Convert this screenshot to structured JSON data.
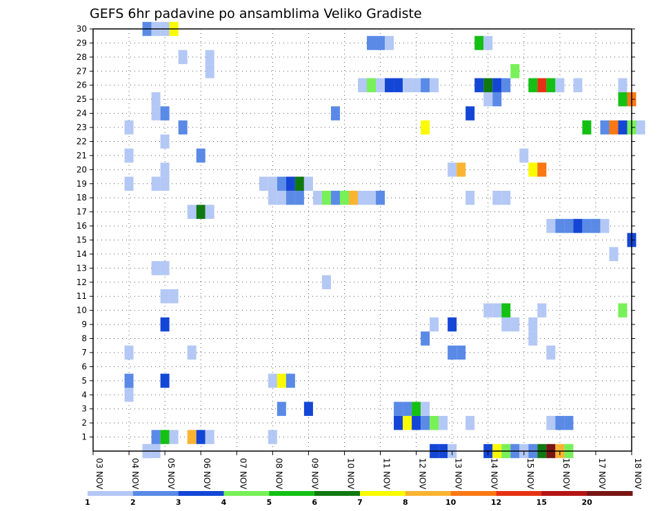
{
  "chart_data": {
    "type": "heatmap",
    "title": "GEFS 6hr padavine po ansamblima Veliko Gradiste",
    "xlabel": "",
    "ylabel": "",
    "x_ticks": [
      "03 NOV",
      "04 NOV",
      "05 NOV",
      "06 NOV",
      "07 NOV",
      "08 NOV",
      "09 NOV",
      "10 NOV",
      "11 NOV",
      "12 NOV",
      "13 NOV",
      "14 NOV",
      "15 NOV",
      "16 NOV",
      "17 NOV",
      "18 NOV"
    ],
    "x_range_days": [
      0,
      15
    ],
    "y_ticks": [
      "1",
      "2",
      "3",
      "4",
      "5",
      "6",
      "7",
      "8",
      "9",
      "10",
      "11",
      "12",
      "13",
      "14",
      "15",
      "16",
      "17",
      "18",
      "19",
      "20",
      "21",
      "22",
      "23",
      "24",
      "25",
      "26",
      "27",
      "28",
      "29",
      "30"
    ],
    "y_range": [
      0,
      30
    ],
    "grid": true,
    "legend_placement": "bottom",
    "legend": {
      "colors": [
        "#b4c8f5",
        "#5a8ae6",
        "#1446d6",
        "#78f058",
        "#14c014",
        "#107810",
        "#fafa00",
        "#fab432",
        "#fa7814",
        "#e63214",
        "#b41414",
        "#781414"
      ],
      "labels": [
        "1",
        "2",
        "3",
        "4",
        "5",
        "6",
        "7",
        "8",
        "10",
        "12",
        "15",
        "20"
      ]
    },
    "cells": [
      {
        "t": 1.5,
        "m": 0,
        "c": 1
      },
      {
        "t": 1.75,
        "m": 0,
        "c": 1
      },
      {
        "t": 1.5,
        "m": 0,
        "c": 1
      },
      {
        "t": 9.5,
        "m": 0,
        "c": 3
      },
      {
        "t": 9.75,
        "m": 0,
        "c": 3
      },
      {
        "t": 10,
        "m": 0,
        "c": 1
      },
      {
        "t": 11,
        "m": 0,
        "c": 3
      },
      {
        "t": 11.25,
        "m": 0,
        "c": 7
      },
      {
        "t": 11.5,
        "m": 0,
        "c": 4
      },
      {
        "t": 11.75,
        "m": 0,
        "c": 2
      },
      {
        "t": 12,
        "m": 0,
        "c": 1
      },
      {
        "t": 12.25,
        "m": 0,
        "c": 2
      },
      {
        "t": 12.5,
        "m": 0,
        "c": 6
      },
      {
        "t": 12.75,
        "m": 0,
        "c": 12
      },
      {
        "t": 13,
        "m": 0,
        "c": 8
      },
      {
        "t": 13.25,
        "m": 0,
        "c": 4
      },
      {
        "t": 1.75,
        "m": 1,
        "c": 2
      },
      {
        "t": 2,
        "m": 1,
        "c": 5
      },
      {
        "t": 2.25,
        "m": 1,
        "c": 1
      },
      {
        "t": 2.75,
        "m": 1,
        "c": 8
      },
      {
        "t": 3,
        "m": 1,
        "c": 3
      },
      {
        "t": 3.25,
        "m": 1,
        "c": 1
      },
      {
        "t": 5,
        "m": 1,
        "c": 1
      },
      {
        "t": 8.5,
        "m": 2,
        "c": 3
      },
      {
        "t": 8.75,
        "m": 2,
        "c": 7
      },
      {
        "t": 9,
        "m": 2,
        "c": 3
      },
      {
        "t": 9.25,
        "m": 2,
        "c": 2
      },
      {
        "t": 9.5,
        "m": 2,
        "c": 4
      },
      {
        "t": 9.75,
        "m": 2,
        "c": 1
      },
      {
        "t": 10.5,
        "m": 2,
        "c": 1
      },
      {
        "t": 12.75,
        "m": 2,
        "c": 1
      },
      {
        "t": 13,
        "m": 2,
        "c": 2
      },
      {
        "t": 13.25,
        "m": 2,
        "c": 2
      },
      {
        "t": 5.25,
        "m": 3,
        "c": 2
      },
      {
        "t": 6,
        "m": 3,
        "c": 3
      },
      {
        "t": 8.5,
        "m": 3,
        "c": 2
      },
      {
        "t": 8.75,
        "m": 3,
        "c": 2
      },
      {
        "t": 9,
        "m": 3,
        "c": 5
      },
      {
        "t": 9.25,
        "m": 3,
        "c": 1
      },
      {
        "t": 1,
        "m": 4,
        "c": 1
      },
      {
        "t": 1,
        "m": 5,
        "c": 2
      },
      {
        "t": 2,
        "m": 5,
        "c": 3
      },
      {
        "t": 5,
        "m": 5,
        "c": 1
      },
      {
        "t": 5.25,
        "m": 5,
        "c": 7
      },
      {
        "t": 5.5,
        "m": 5,
        "c": 2
      },
      {
        "t": 1,
        "m": 7,
        "c": 1
      },
      {
        "t": 2.75,
        "m": 7,
        "c": 1
      },
      {
        "t": 10,
        "m": 7,
        "c": 2
      },
      {
        "t": 10.25,
        "m": 7,
        "c": 2
      },
      {
        "t": 12.75,
        "m": 7,
        "c": 1
      },
      {
        "t": 9.25,
        "m": 8,
        "c": 2
      },
      {
        "t": 12.25,
        "m": 8,
        "c": 1
      },
      {
        "t": 2,
        "m": 9,
        "c": 3
      },
      {
        "t": 9.5,
        "m": 9,
        "c": 1
      },
      {
        "t": 10,
        "m": 9,
        "c": 3
      },
      {
        "t": 11.5,
        "m": 9,
        "c": 1
      },
      {
        "t": 11.75,
        "m": 9,
        "c": 1
      },
      {
        "t": 12.25,
        "m": 9,
        "c": 1
      },
      {
        "t": 11,
        "m": 10,
        "c": 1
      },
      {
        "t": 11.25,
        "m": 10,
        "c": 1
      },
      {
        "t": 11.5,
        "m": 10,
        "c": 5
      },
      {
        "t": 12.5,
        "m": 10,
        "c": 1
      },
      {
        "t": 14.75,
        "m": 10,
        "c": 4
      },
      {
        "t": 2,
        "m": 11,
        "c": 1
      },
      {
        "t": 2.25,
        "m": 11,
        "c": 1
      },
      {
        "t": 6.5,
        "m": 12,
        "c": 1
      },
      {
        "t": 1.75,
        "m": 13,
        "c": 1
      },
      {
        "t": 2,
        "m": 13,
        "c": 1
      },
      {
        "t": 14.5,
        "m": 14,
        "c": 1
      },
      {
        "t": 15,
        "m": 15,
        "c": 3
      },
      {
        "t": 12.75,
        "m": 16,
        "c": 1
      },
      {
        "t": 13,
        "m": 16,
        "c": 2
      },
      {
        "t": 13.25,
        "m": 16,
        "c": 2
      },
      {
        "t": 13.5,
        "m": 16,
        "c": 3
      },
      {
        "t": 13.75,
        "m": 16,
        "c": 2
      },
      {
        "t": 14,
        "m": 16,
        "c": 2
      },
      {
        "t": 14.25,
        "m": 16,
        "c": 1
      },
      {
        "t": 2.75,
        "m": 17,
        "c": 1
      },
      {
        "t": 3,
        "m": 17,
        "c": 6
      },
      {
        "t": 3.25,
        "m": 17,
        "c": 1
      },
      {
        "t": 5,
        "m": 18,
        "c": 1
      },
      {
        "t": 5.25,
        "m": 18,
        "c": 1
      },
      {
        "t": 5.5,
        "m": 18,
        "c": 2
      },
      {
        "t": 5.75,
        "m": 18,
        "c": 2
      },
      {
        "t": 6.25,
        "m": 18,
        "c": 1
      },
      {
        "t": 6.5,
        "m": 18,
        "c": 4
      },
      {
        "t": 6.75,
        "m": 18,
        "c": 2
      },
      {
        "t": 7,
        "m": 18,
        "c": 4
      },
      {
        "t": 7.25,
        "m": 18,
        "c": 8
      },
      {
        "t": 7.5,
        "m": 18,
        "c": 1
      },
      {
        "t": 7.75,
        "m": 18,
        "c": 1
      },
      {
        "t": 8,
        "m": 18,
        "c": 2
      },
      {
        "t": 10.5,
        "m": 18,
        "c": 1
      },
      {
        "t": 11.25,
        "m": 18,
        "c": 1
      },
      {
        "t": 11.5,
        "m": 18,
        "c": 1
      },
      {
        "t": 1,
        "m": 19,
        "c": 1
      },
      {
        "t": 1.75,
        "m": 19,
        "c": 1
      },
      {
        "t": 2,
        "m": 19,
        "c": 1
      },
      {
        "t": 4.75,
        "m": 19,
        "c": 1
      },
      {
        "t": 5,
        "m": 19,
        "c": 1
      },
      {
        "t": 5.25,
        "m": 19,
        "c": 2
      },
      {
        "t": 5.5,
        "m": 19,
        "c": 3
      },
      {
        "t": 5.75,
        "m": 19,
        "c": 6
      },
      {
        "t": 6,
        "m": 19,
        "c": 1
      },
      {
        "t": 2,
        "m": 20,
        "c": 1
      },
      {
        "t": 10,
        "m": 20,
        "c": 1
      },
      {
        "t": 10.25,
        "m": 20,
        "c": 8
      },
      {
        "t": 12.25,
        "m": 20,
        "c": 7
      },
      {
        "t": 12.5,
        "m": 20,
        "c": 9
      },
      {
        "t": 1,
        "m": 21,
        "c": 1
      },
      {
        "t": 3,
        "m": 21,
        "c": 2
      },
      {
        "t": 12,
        "m": 21,
        "c": 1
      },
      {
        "t": 2,
        "m": 22,
        "c": 1
      },
      {
        "t": 1,
        "m": 23,
        "c": 1
      },
      {
        "t": 2.5,
        "m": 23,
        "c": 2
      },
      {
        "t": 9.25,
        "m": 23,
        "c": 7
      },
      {
        "t": 13.75,
        "m": 23,
        "c": 5
      },
      {
        "t": 14.25,
        "m": 23,
        "c": 2
      },
      {
        "t": 14.5,
        "m": 23,
        "c": 9
      },
      {
        "t": 14.75,
        "m": 23,
        "c": 3
      },
      {
        "t": 15,
        "m": 23,
        "c": 4
      },
      {
        "t": 15.25,
        "m": 23,
        "c": 1
      },
      {
        "t": 1.75,
        "m": 24,
        "c": 1
      },
      {
        "t": 2,
        "m": 24,
        "c": 2
      },
      {
        "t": 6.75,
        "m": 24,
        "c": 2
      },
      {
        "t": 10.5,
        "m": 24,
        "c": 3
      },
      {
        "t": 1.75,
        "m": 25,
        "c": 1
      },
      {
        "t": 11,
        "m": 25,
        "c": 1
      },
      {
        "t": 11.25,
        "m": 25,
        "c": 2
      },
      {
        "t": 14.75,
        "m": 25,
        "c": 5
      },
      {
        "t": 15,
        "m": 25,
        "c": 9
      },
      {
        "t": 7.5,
        "m": 26,
        "c": 1
      },
      {
        "t": 7.75,
        "m": 26,
        "c": 4
      },
      {
        "t": 8,
        "m": 26,
        "c": 1
      },
      {
        "t": 8.25,
        "m": 26,
        "c": 3
      },
      {
        "t": 8.5,
        "m": 26,
        "c": 3
      },
      {
        "t": 8.75,
        "m": 26,
        "c": 1
      },
      {
        "t": 9,
        "m": 26,
        "c": 1
      },
      {
        "t": 9.25,
        "m": 26,
        "c": 2
      },
      {
        "t": 9.5,
        "m": 26,
        "c": 1
      },
      {
        "t": 10.75,
        "m": 26,
        "c": 3
      },
      {
        "t": 11,
        "m": 26,
        "c": 6
      },
      {
        "t": 11.25,
        "m": 26,
        "c": 3
      },
      {
        "t": 11.5,
        "m": 26,
        "c": 2
      },
      {
        "t": 12.25,
        "m": 26,
        "c": 5
      },
      {
        "t": 12.5,
        "m": 26,
        "c": 10
      },
      {
        "t": 12.75,
        "m": 26,
        "c": 5
      },
      {
        "t": 13,
        "m": 26,
        "c": 1
      },
      {
        "t": 13.5,
        "m": 26,
        "c": 1
      },
      {
        "t": 14.75,
        "m": 26,
        "c": 1
      },
      {
        "t": 3.25,
        "m": 27,
        "c": 1
      },
      {
        "t": 11.75,
        "m": 27,
        "c": 4
      },
      {
        "t": 2.5,
        "m": 28,
        "c": 1
      },
      {
        "t": 3.25,
        "m": 28,
        "c": 1
      },
      {
        "t": 7.75,
        "m": 29,
        "c": 2
      },
      {
        "t": 8,
        "m": 29,
        "c": 2
      },
      {
        "t": 8.25,
        "m": 29,
        "c": 1
      },
      {
        "t": 10.75,
        "m": 29,
        "c": 5
      },
      {
        "t": 11,
        "m": 29,
        "c": 1
      },
      {
        "t": 1.5,
        "m": 30,
        "c": 2
      },
      {
        "t": 1.75,
        "m": 30,
        "c": 1
      },
      {
        "t": 2,
        "m": 30,
        "c": 1
      },
      {
        "t": 2.25,
        "m": 30,
        "c": 7
      }
    ]
  }
}
